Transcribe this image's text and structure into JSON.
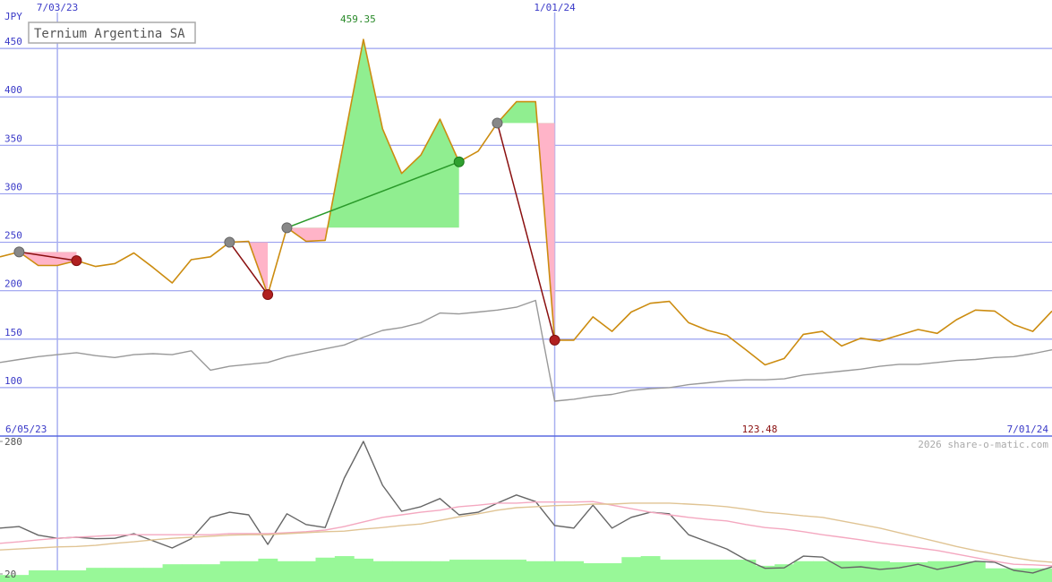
{
  "chart_data": [
    {
      "type": "line",
      "unit_label": "JPY",
      "xlim": [
        0,
        55
      ],
      "xticks": [
        {
          "value": 3,
          "label": "7/03/23"
        },
        {
          "value": 29,
          "label": "1/01/24"
        }
      ],
      "date_range": [
        "6/05/23",
        "7/01/24"
      ],
      "ylim": [
        50,
        500
      ],
      "yticks": [
        100,
        150,
        200,
        250,
        300,
        350,
        400,
        450
      ],
      "grid": true,
      "series": [
        {
          "name": "Ternium Argentina SA",
          "color": "#cc8c10",
          "values": [
            235,
            240,
            226,
            226,
            231,
            225,
            228,
            239,
            224,
            208,
            232,
            235,
            250,
            251,
            196,
            265,
            251,
            252,
            356,
            459.35,
            367,
            321,
            340,
            377,
            333,
            344,
            373,
            395,
            395,
            149,
            149,
            173,
            158,
            178,
            187,
            189,
            167,
            159,
            154,
            139,
            123.48,
            130,
            155,
            158,
            143,
            151,
            148,
            154,
            160,
            156,
            170,
            180,
            179,
            165,
            158,
            179
          ]
        },
        {
          "color": "#999999",
          "values": [
            126,
            129,
            132,
            134,
            136,
            133,
            131,
            134,
            135,
            134,
            138,
            118,
            122,
            124,
            126,
            132,
            136,
            140,
            144,
            152,
            159,
            162,
            167,
            177,
            176,
            178,
            180,
            183,
            190,
            86,
            88,
            91,
            93,
            97,
            99,
            100,
            103,
            105,
            107,
            108,
            108,
            109,
            113,
            115,
            117,
            119,
            122,
            124,
            124,
            126,
            128,
            129,
            131,
            132,
            135,
            139
          ]
        }
      ],
      "trades": [
        {
          "entry": 1,
          "exit": 4
        },
        {
          "entry": 12,
          "exit": 14
        },
        {
          "entry": 15,
          "exit": 24
        },
        {
          "entry": 26,
          "exit": 29
        }
      ],
      "labeled_points": [
        19,
        40
      ],
      "watermark": "2026 share-o-matic.com"
    },
    {
      "type": "line",
      "xlim": [
        0,
        55
      ],
      "ylim": [
        20,
        280
      ],
      "yticks": [
        20,
        280
      ],
      "series": [
        {
          "color": "#666666",
          "values": [
            110,
            113,
            96,
            90,
            92,
            89,
            90,
            99,
            85,
            71,
            89,
            131,
            141,
            136,
            78,
            138,
            117,
            111,
            208,
            280,
            194,
            143,
            152,
            168,
            136,
            141,
            159,
            175,
            162,
            115,
            110,
            155,
            110,
            131,
            141,
            138,
            97,
            83,
            69,
            48,
            31,
            32,
            55,
            53,
            32,
            34,
            29,
            32,
            39,
            29,
            36,
            45,
            43,
            27,
            22,
            34
          ]
        },
        {
          "color": "#f4a8c0",
          "values": [
            80,
            83,
            87,
            90,
            92,
            94,
            96,
            97,
            97,
            97,
            97,
            97,
            99,
            99,
            99,
            101,
            103,
            106,
            113,
            122,
            131,
            136,
            141,
            145,
            152,
            155,
            159,
            159,
            161,
            161,
            161,
            162,
            155,
            148,
            141,
            136,
            131,
            127,
            124,
            117,
            111,
            108,
            103,
            97,
            92,
            87,
            81,
            76,
            71,
            66,
            59,
            52,
            45,
            39,
            38,
            36
          ]
        },
        {
          "color": "#e0c494",
          "values": [
            67,
            69,
            71,
            73,
            74,
            76,
            80,
            83,
            87,
            90,
            92,
            94,
            96,
            97,
            97,
            99,
            101,
            103,
            104,
            108,
            111,
            115,
            118,
            125,
            132,
            138,
            145,
            150,
            152,
            154,
            155,
            157,
            157,
            159,
            159,
            159,
            157,
            155,
            152,
            147,
            141,
            138,
            134,
            131,
            124,
            117,
            110,
            101,
            92,
            83,
            74,
            66,
            59,
            52,
            46,
            43
          ]
        }
      ],
      "volume": {
        "color": "#98f898",
        "values": [
          18,
          18,
          27,
          27,
          27,
          32,
          32,
          32,
          32,
          39,
          39,
          39,
          45,
          45,
          50,
          45,
          45,
          52,
          55,
          50,
          45,
          45,
          45,
          45,
          48,
          48,
          48,
          48,
          45,
          45,
          45,
          41,
          41,
          53,
          55,
          48,
          48,
          48,
          48,
          48,
          36,
          39,
          45,
          45,
          45,
          45,
          45,
          43,
          43,
          45,
          45,
          45,
          31,
          31,
          31,
          31
        ]
      }
    }
  ]
}
